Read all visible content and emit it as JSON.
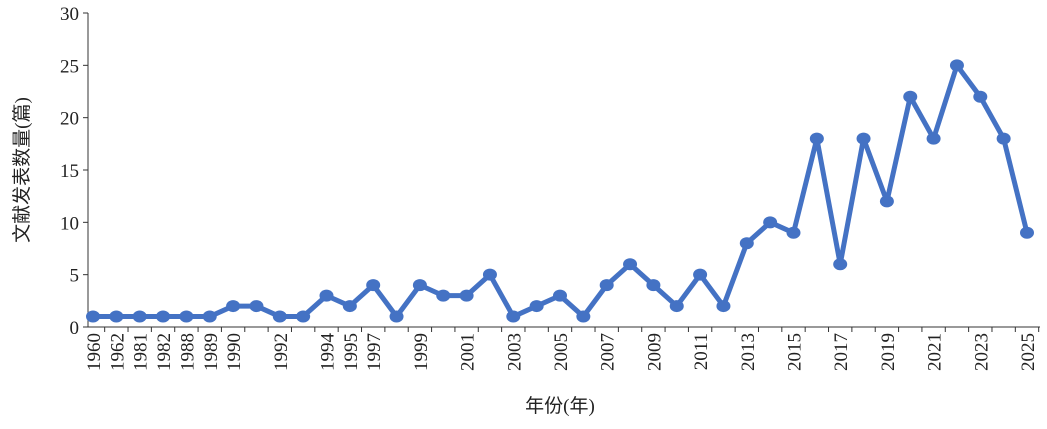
{
  "chart_data": {
    "type": "line",
    "x_label": "年份(年)",
    "y_label": "文献发表数量(篇)",
    "categories": [
      "1960",
      "1962",
      "1981",
      "1982",
      "1988",
      "1989",
      "1990",
      null,
      "1992",
      null,
      "1994",
      "1995",
      "1997",
      null,
      "1999",
      null,
      "2001",
      null,
      "2003",
      null,
      "2005",
      null,
      "2007",
      null,
      "2009",
      null,
      "2011",
      null,
      "2013",
      null,
      "2015",
      null,
      "2017",
      null,
      "2019",
      null,
      "2021",
      null,
      "2023",
      null,
      "2025"
    ],
    "series": [
      {
        "color": "#4472c4",
        "values": [
          1,
          1,
          1,
          1,
          1,
          1,
          2,
          2,
          1,
          1,
          3,
          2,
          4,
          1,
          4,
          3,
          3,
          5,
          1,
          2,
          3,
          1,
          4,
          6,
          4,
          2,
          5,
          2,
          8,
          10,
          9,
          18,
          6,
          18,
          12,
          22,
          18,
          25,
          22,
          18,
          9
        ]
      }
    ],
    "ylim": [
      0,
      30
    ],
    "yticks": [
      0,
      5,
      10,
      15,
      20,
      25,
      30
    ]
  }
}
